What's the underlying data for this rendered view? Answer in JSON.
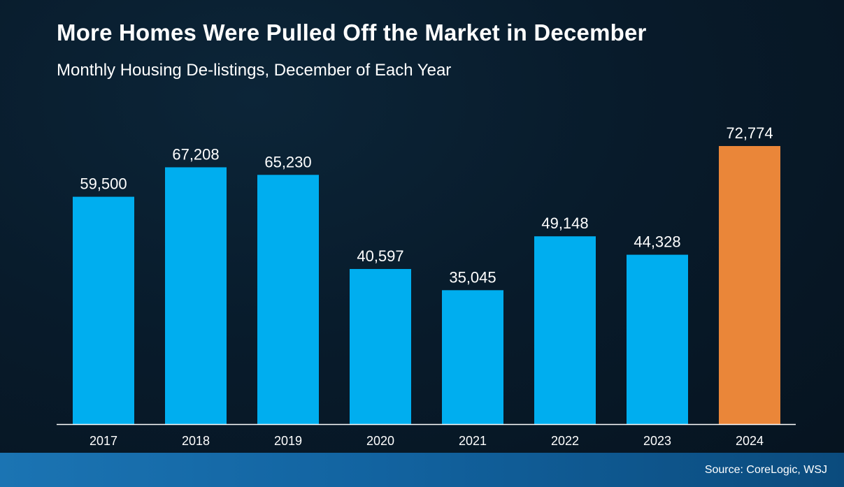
{
  "title": "More Homes Were Pulled Off the Market in December",
  "subtitle": "Monthly Housing De-listings, December of Each Year",
  "source": "Source: CoreLogic, WSJ",
  "colors": {
    "bar": "#00aeef",
    "highlight": "#ea8639",
    "axis": "#ffffff",
    "footer": "#1b74b3"
  },
  "chart_data": {
    "type": "bar",
    "categories": [
      "2017",
      "2018",
      "2019",
      "2020",
      "2021",
      "2022",
      "2023",
      "2024"
    ],
    "values": [
      59500,
      67208,
      65230,
      40597,
      35045,
      49148,
      44328,
      72774
    ],
    "value_labels": [
      "59,500",
      "67,208",
      "65,230",
      "40,597",
      "35,045",
      "49,148",
      "44,328",
      "72,774"
    ],
    "highlight_category": "2024",
    "title": "More Homes Were Pulled Off the Market in December",
    "subtitle": "Monthly Housing De-listings, December of Each Year",
    "xlabel": "",
    "ylabel": "",
    "ylim": [
      0,
      72774
    ],
    "grid": false,
    "legend": "none"
  }
}
